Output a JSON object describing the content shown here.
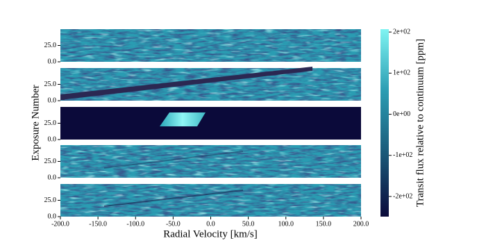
{
  "chart_data": {
    "type": "heatmap",
    "panel_count": 5,
    "xlabel": "Radial Velocity [km/s]",
    "ylabel": "Exposure Number",
    "xlim": [
      -200,
      200
    ],
    "xticks": [
      {
        "value": -200,
        "label": "-200.0"
      },
      {
        "value": -150,
        "label": "-150.0"
      },
      {
        "value": -100,
        "label": "-100.0"
      },
      {
        "value": -50,
        "label": "-50.0"
      },
      {
        "value": 0,
        "label": "0.0"
      },
      {
        "value": 50,
        "label": "50.0"
      },
      {
        "value": 100,
        "label": "100.0"
      },
      {
        "value": 150,
        "label": "150.0"
      },
      {
        "value": 200,
        "label": "200.0"
      }
    ],
    "ylim": [
      0,
      50
    ],
    "yticks": [
      {
        "value": 0,
        "label": "0.0"
      },
      {
        "value": 25,
        "label": "25.0"
      }
    ],
    "colorbar": {
      "label": "Transit flux relative to continuum [ppm]",
      "clim": [
        -249,
        207
      ],
      "ticks": [
        {
          "value": 200,
          "label": "2e+02"
        },
        {
          "value": 100,
          "label": "1e+02"
        },
        {
          "value": 0,
          "label": "0e+00"
        },
        {
          "value": -100,
          "label": "-1e+02"
        },
        {
          "value": -200,
          "label": "-2e+02"
        }
      ]
    },
    "colormap": [
      "#0b0a3a",
      "#1a5878",
      "#2a9cb2",
      "#7ff4f2"
    ]
  }
}
